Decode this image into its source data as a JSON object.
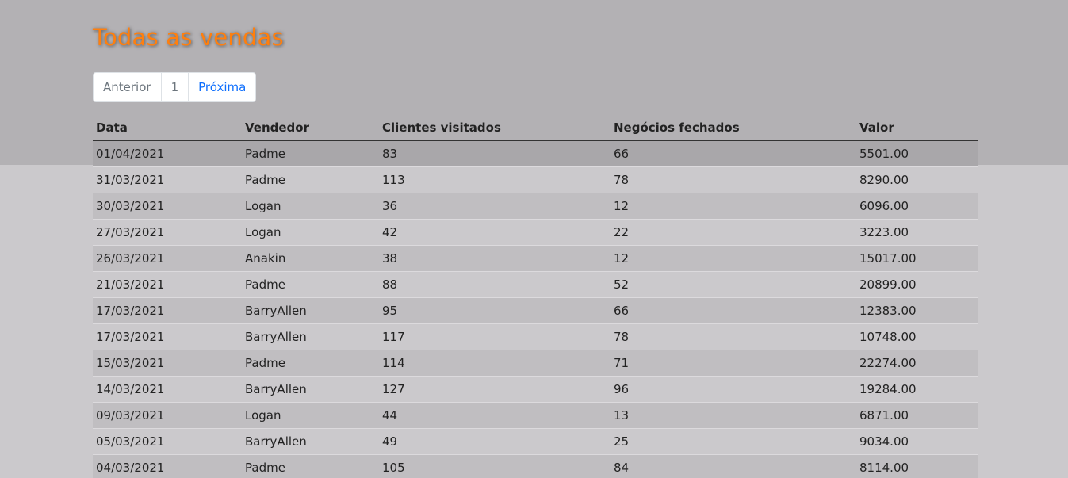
{
  "page": {
    "title": "Todas as vendas"
  },
  "pagination": {
    "prev_label": "Anterior",
    "page_label": "1",
    "next_label": "Próxima"
  },
  "table": {
    "headers": [
      "Data",
      "Vendedor",
      "Clientes visitados",
      "Negócios fechados",
      "Valor"
    ],
    "rows": [
      [
        "01/04/2021",
        "Padme",
        "83",
        "66",
        "5501.00"
      ],
      [
        "31/03/2021",
        "Padme",
        "113",
        "78",
        "8290.00"
      ],
      [
        "30/03/2021",
        "Logan",
        "36",
        "12",
        "6096.00"
      ],
      [
        "27/03/2021",
        "Logan",
        "42",
        "22",
        "3223.00"
      ],
      [
        "26/03/2021",
        "Anakin",
        "38",
        "12",
        "15017.00"
      ],
      [
        "21/03/2021",
        "Padme",
        "88",
        "52",
        "20899.00"
      ],
      [
        "17/03/2021",
        "BarryAllen",
        "95",
        "66",
        "12383.00"
      ],
      [
        "17/03/2021",
        "BarryAllen",
        "117",
        "78",
        "10748.00"
      ],
      [
        "15/03/2021",
        "Padme",
        "114",
        "71",
        "22274.00"
      ],
      [
        "14/03/2021",
        "BarryAllen",
        "127",
        "96",
        "19284.00"
      ],
      [
        "09/03/2021",
        "Logan",
        "44",
        "13",
        "6871.00"
      ],
      [
        "05/03/2021",
        "BarryAllen",
        "49",
        "25",
        "9034.00"
      ],
      [
        "04/03/2021",
        "Padme",
        "105",
        "84",
        "8114.00"
      ]
    ]
  },
  "colors": {
    "title": "#ff7f0e",
    "link": "#0d6efd",
    "band": "#b3b1b4",
    "background": "#cbc9cc"
  }
}
